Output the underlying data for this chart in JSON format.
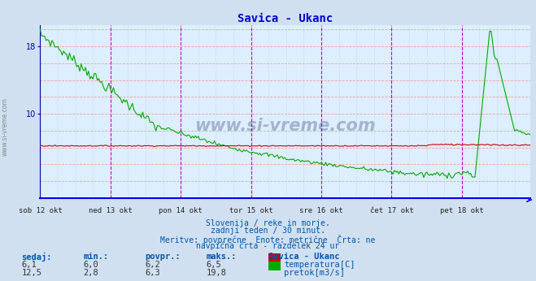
{
  "title": "Savica - Ukanc",
  "title_color": "#0000cc",
  "bg_color": "#d0e0f0",
  "plot_bg_color": "#ddeeff",
  "grid_color_h": "#ff9999",
  "grid_color_v_light": "#ccddee",
  "dashed_v_color_first": "#888888",
  "magenta_v_color": "#cc00cc",
  "x_axis_color": "#0000ee",
  "y_axis_color": "#0000aa",
  "y_tick_color": "#0000aa",
  "num_points": 336,
  "day_ticks_idx": [
    0,
    48,
    96,
    144,
    192,
    240,
    288
  ],
  "day_labels": [
    "sob 12 okt",
    "ned 13 okt",
    "pon 14 okt",
    "tor 15 okt",
    "sre 16 okt",
    "čet 17 okt",
    "pet 18 okt"
  ],
  "yticks": [
    10,
    18
  ],
  "ymin": 0,
  "ymax": 20.5,
  "temp_color": "#cc0000",
  "flow_color": "#00aa00",
  "temp_sedaj": 6.1,
  "temp_min": 6.0,
  "temp_povpr": 6.2,
  "temp_maks": 6.5,
  "flow_sedaj": 12.5,
  "flow_min": 2.8,
  "flow_povpr": 6.3,
  "flow_maks": 19.8,
  "footer_line1": "Slovenija / reke in morje.",
  "footer_line2": "zadnji teden / 30 minut.",
  "footer_line3": "Meritve: povprečne  Enote: metrične  Črta: ne",
  "footer_line4": "navpična črta - razdelek 24 ur",
  "footer_color": "#0055aa",
  "label_header": "Savica - Ukanc",
  "col_headers": [
    "sedaj:",
    "min.:",
    "povpr.:",
    "maks.:"
  ],
  "watermark": "www.si-vreme.com"
}
